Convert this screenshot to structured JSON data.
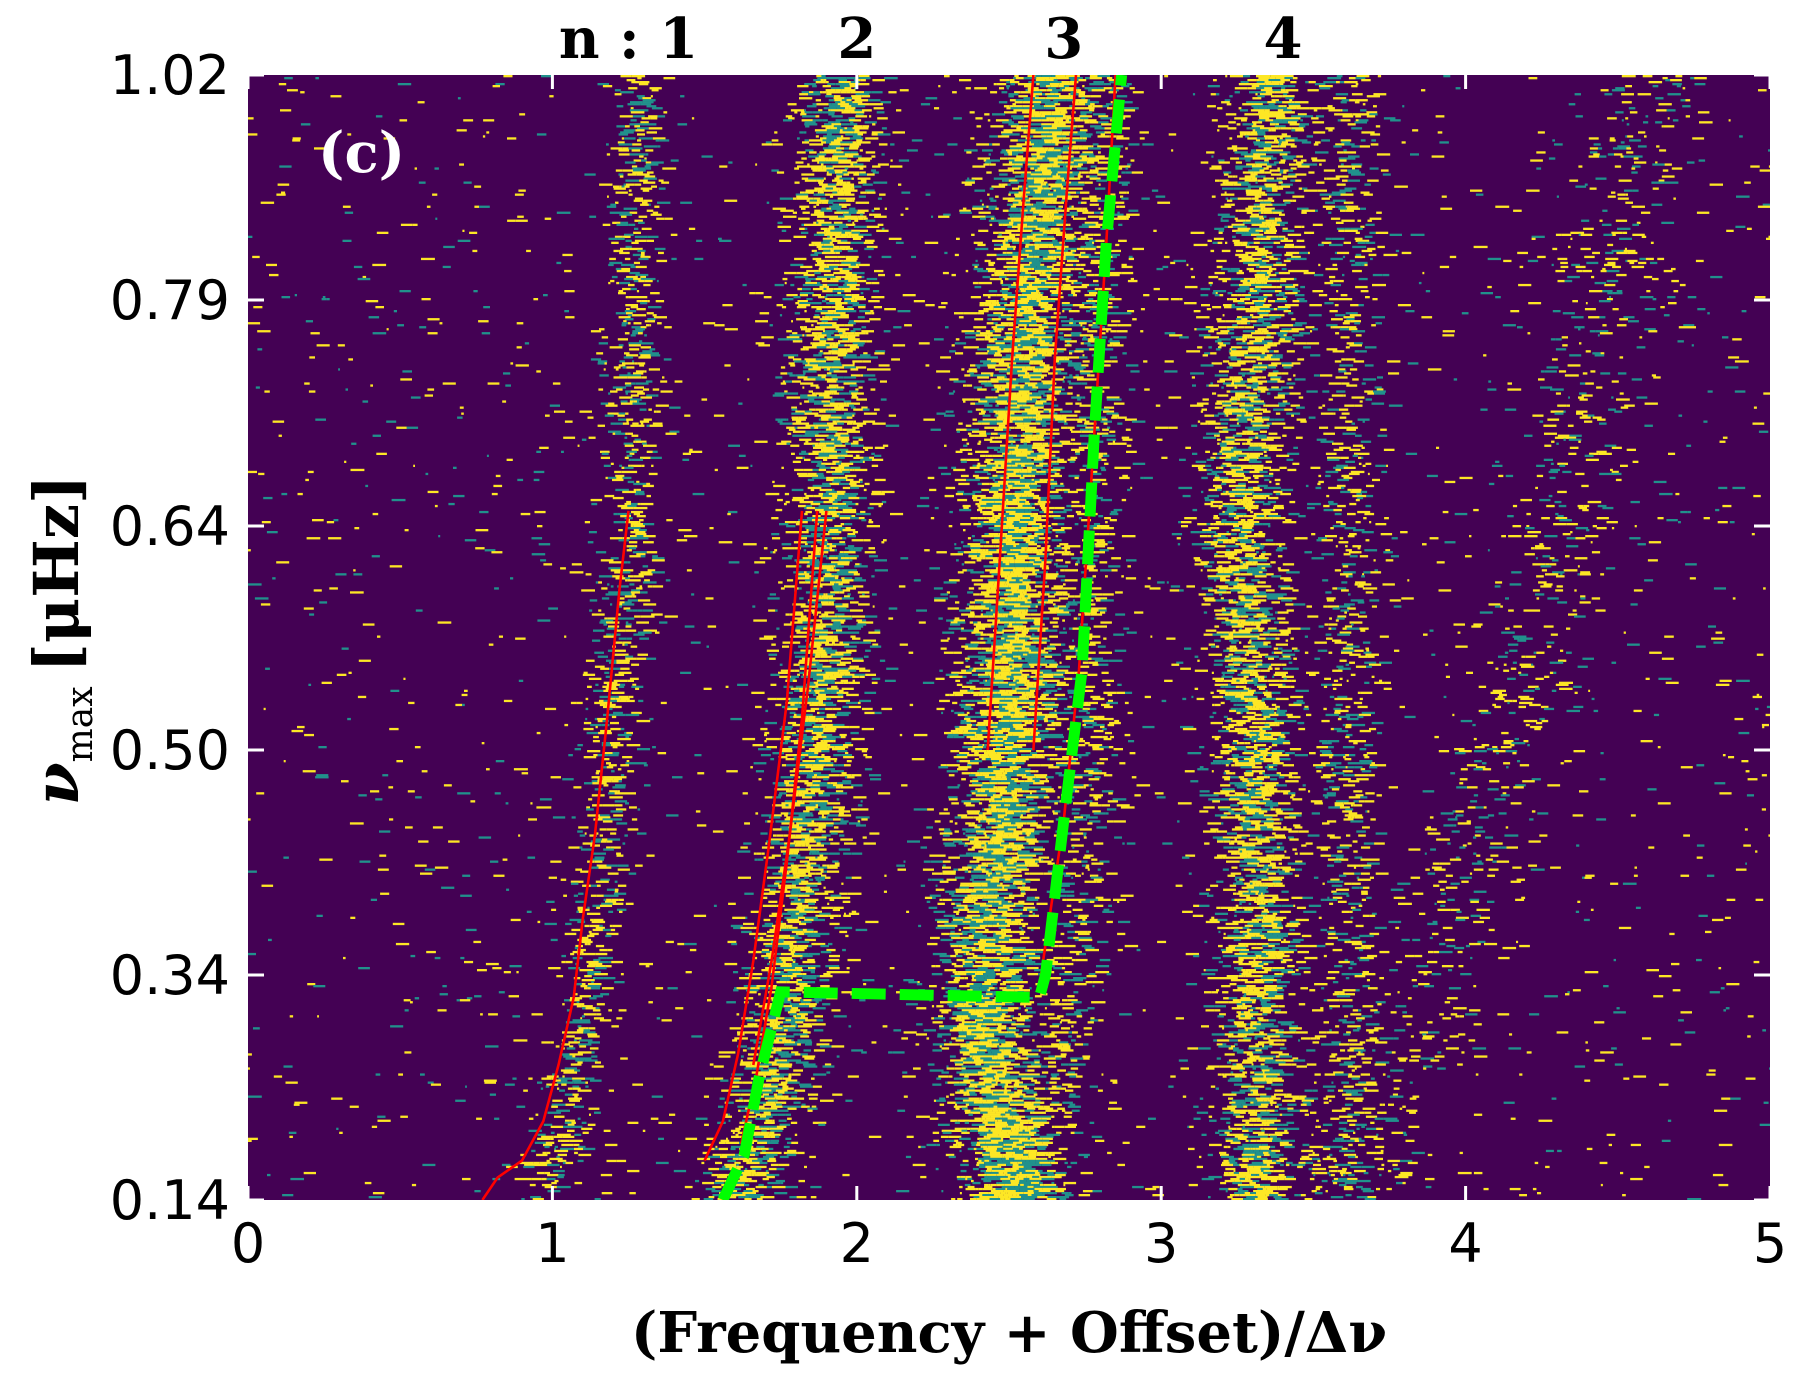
{
  "chart_data": {
    "type": "heatmap",
    "panel_label": "(c)",
    "xlabel": "(Frequency + Offset)/Δν",
    "ylabel_main": "ν",
    "ylabel_sub": "max",
    "ylabel_unit": "[μHz]",
    "xlim": [
      0,
      5
    ],
    "ylim": [
      0.14,
      1.02
    ],
    "x_ticks": [
      0,
      1,
      2,
      3,
      4,
      5
    ],
    "x_tick_labels": [
      "0",
      "1",
      "2",
      "3",
      "4",
      "5"
    ],
    "y_ticks": [
      0.14,
      0.34,
      0.5,
      0.64,
      0.79,
      1.02
    ],
    "y_tick_labels": [
      "0.14",
      "0.34",
      "0.50",
      "0.64",
      "0.79",
      "1.02"
    ],
    "order_labels": [
      {
        "text": "n : 1",
        "x": 1.25
      },
      {
        "text": "2",
        "x": 2.0
      },
      {
        "text": "3",
        "x": 2.68
      },
      {
        "text": "4",
        "x": 3.4
      }
    ],
    "colors": {
      "background": "#440154",
      "mid": "#21918c",
      "high": "#fde725",
      "ridge_line": "#ff0000",
      "boundary": "#00ff00"
    },
    "ridges": [
      {
        "center": [
          [
            0.14,
            0.95
          ],
          [
            0.2,
            1.02
          ],
          [
            0.3,
            1.1
          ],
          [
            0.4,
            1.14
          ],
          [
            0.6,
            1.22
          ],
          [
            0.64,
            1.25
          ],
          [
            0.8,
            1.26
          ],
          [
            1.02,
            1.27
          ]
        ],
        "strength": 0.45,
        "width": 0.05
      },
      {
        "center": [
          [
            0.14,
            1.6
          ],
          [
            0.3,
            1.75
          ],
          [
            0.5,
            1.85
          ],
          [
            0.64,
            1.9
          ],
          [
            0.8,
            1.9
          ],
          [
            1.02,
            1.95
          ]
        ],
        "strength": 0.8,
        "width": 0.08
      },
      {
        "center": [
          [
            0.14,
            2.5
          ],
          [
            0.3,
            2.4
          ],
          [
            0.5,
            2.48
          ],
          [
            0.64,
            2.5
          ],
          [
            0.8,
            2.56
          ],
          [
            1.02,
            2.62
          ]
        ],
        "strength": 1.0,
        "width": 0.1
      },
      {
        "center": [
          [
            0.14,
            2.55
          ],
          [
            0.3,
            2.68
          ],
          [
            0.5,
            2.76
          ],
          [
            1.02,
            2.8
          ]
        ],
        "strength": 0.3,
        "width": 0.06
      },
      {
        "center": [
          [
            0.3,
            3.3
          ],
          [
            0.5,
            3.3
          ],
          [
            0.64,
            3.25
          ],
          [
            0.8,
            3.3
          ],
          [
            1.02,
            3.35
          ]
        ],
        "strength": 0.8,
        "width": 0.08
      },
      {
        "center": [
          [
            0.3,
            3.6
          ],
          [
            0.64,
            3.6
          ],
          [
            1.02,
            3.6
          ]
        ],
        "strength": 0.3,
        "width": 0.06
      },
      {
        "center": [
          [
            0.14,
            3.6
          ],
          [
            0.64,
            4.3
          ],
          [
            1.02,
            4.6
          ]
        ],
        "strength": 0.15,
        "width": 0.1
      }
    ],
    "red_lines": [
      [
        [
          0.77,
          0.14
        ],
        [
          0.82,
          0.16
        ],
        [
          0.9,
          0.175
        ],
        [
          0.97,
          0.21
        ],
        [
          1.02,
          0.26
        ],
        [
          1.07,
          0.32
        ],
        [
          1.1,
          0.38
        ],
        [
          1.14,
          0.44
        ],
        [
          1.18,
          0.52
        ],
        [
          1.22,
          0.6
        ],
        [
          1.25,
          0.65
        ]
      ],
      [
        [
          1.5,
          0.175
        ],
        [
          1.56,
          0.21
        ],
        [
          1.61,
          0.27
        ],
        [
          1.66,
          0.35
        ],
        [
          1.71,
          0.43
        ],
        [
          1.77,
          0.53
        ],
        [
          1.82,
          0.65
        ]
      ],
      [
        [
          1.62,
          0.19
        ],
        [
          1.67,
          0.25
        ],
        [
          1.72,
          0.33
        ],
        [
          1.77,
          0.42
        ],
        [
          1.82,
          0.52
        ],
        [
          1.87,
          0.65
        ]
      ],
      [
        [
          1.66,
          0.26
        ],
        [
          1.72,
          0.35
        ],
        [
          1.78,
          0.44
        ],
        [
          1.84,
          0.54
        ],
        [
          1.9,
          0.65
        ]
      ],
      [
        [
          2.43,
          0.5
        ],
        [
          2.47,
          0.62
        ],
        [
          2.51,
          0.75
        ],
        [
          2.55,
          0.9
        ],
        [
          2.58,
          1.02
        ]
      ],
      [
        [
          2.58,
          0.5
        ],
        [
          2.62,
          0.62
        ],
        [
          2.65,
          0.75
        ],
        [
          2.69,
          0.9
        ],
        [
          2.72,
          1.02
        ]
      ],
      [
        [
          2.6,
          0.33
        ],
        [
          2.68,
          0.45
        ],
        [
          2.73,
          0.55
        ],
        [
          2.78,
          0.7
        ],
        [
          2.82,
          0.85
        ],
        [
          2.85,
          1.02
        ]
      ]
    ],
    "green_boundary": [
      [
        1.56,
        0.14
      ],
      [
        1.63,
        0.18
      ],
      [
        1.68,
        0.25
      ],
      [
        1.75,
        0.325
      ],
      [
        2.6,
        0.32
      ],
      [
        2.62,
        0.34
      ],
      [
        2.68,
        0.45
      ],
      [
        2.74,
        0.55
      ],
      [
        2.78,
        0.7
      ],
      [
        2.82,
        0.85
      ],
      [
        2.87,
        1.02
      ]
    ]
  }
}
